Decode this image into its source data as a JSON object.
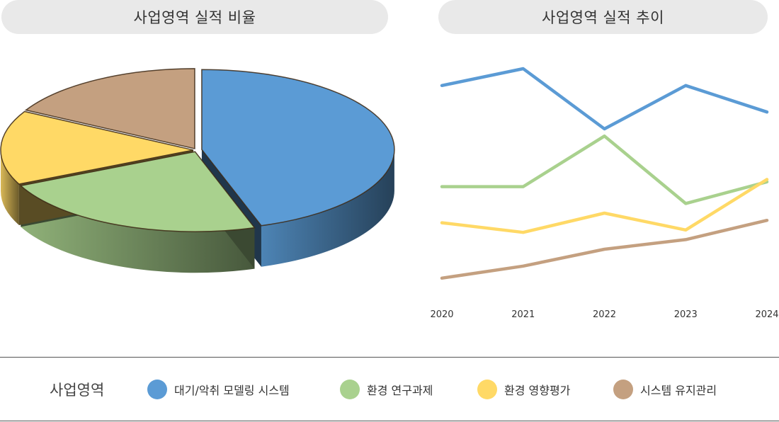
{
  "titles": {
    "ratio": "사업영역 실적 비율",
    "trend": "사업영역 실적 추이"
  },
  "legend": {
    "title": "사업영역",
    "items": [
      {
        "label": "대기/악취 모델링 시스템",
        "color": "#5b9bd5"
      },
      {
        "label": "환경 연구과제",
        "color": "#a9d18e"
      },
      {
        "label": "환경 영향평가",
        "color": "#ffd966"
      },
      {
        "label": "시스템 유지관리",
        "color": "#c4a080"
      }
    ]
  },
  "chart_data": [
    {
      "type": "pie",
      "title": "사업영역 실적 비율",
      "style": "3d",
      "slices": [
        {
          "name": "대기/악취 모델링 시스템",
          "value": 45,
          "color": "#5b9bd5"
        },
        {
          "name": "환경 연구과제",
          "value": 23,
          "color": "#a9d18e"
        },
        {
          "name": "환경 영향평가",
          "value": 15,
          "color": "#ffd966"
        },
        {
          "name": "시스템 유지관리",
          "value": 17,
          "color": "#c4a080"
        }
      ]
    },
    {
      "type": "line",
      "title": "사업영역 실적 추이",
      "x": [
        "2020",
        "2021",
        "2022",
        "2023",
        "2024"
      ],
      "ylim": [
        0,
        100
      ],
      "grid": false,
      "series": [
        {
          "name": "대기/악취 모델링 시스템",
          "color": "#5b9bd5",
          "values": [
            88,
            95,
            70,
            88,
            77
          ]
        },
        {
          "name": "환경 연구과제",
          "color": "#a9d18e",
          "values": [
            46,
            46,
            67,
            39,
            48
          ]
        },
        {
          "name": "환경 영향평가",
          "color": "#ffd966",
          "values": [
            31,
            27,
            35,
            28,
            49
          ]
        },
        {
          "name": "시스템 유지관리",
          "color": "#c4a080",
          "values": [
            8,
            13,
            20,
            24,
            32
          ]
        }
      ]
    }
  ]
}
